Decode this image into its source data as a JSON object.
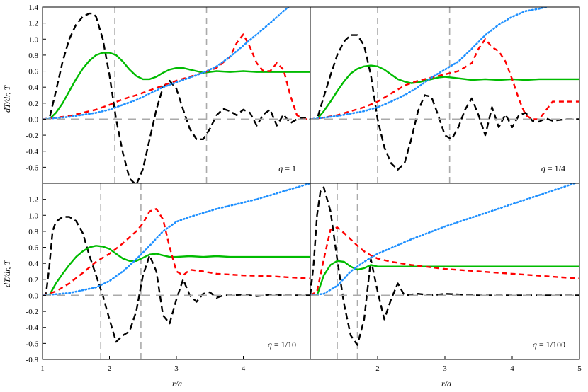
{
  "figure": {
    "ylabel": "dT/dr, T",
    "xlabel": "r/a",
    "colors": {
      "dT_dr": "#000000",
      "T": "#00bb00",
      "red": "#ff0000",
      "blue": "#1e90ff",
      "ref": "#aaaaaa"
    }
  },
  "chart_data": [
    {
      "type": "line",
      "panel": "top-left",
      "annotation": "q = 1",
      "q_value": "1",
      "xlim": [
        1,
        5
      ],
      "ylim": [
        -0.8,
        1.4
      ],
      "yticks": [
        "-0.6",
        "-0.4",
        "-0.2",
        "0.0",
        "0.2",
        "0.4",
        "0.6",
        "0.8",
        "1.0",
        "1.2",
        "1.4"
      ],
      "xticks": [],
      "vlines": [
        2.08,
        3.45
      ],
      "series": [
        {
          "key": "black",
          "style": "dashed",
          "x": [
            1.0,
            1.1,
            1.2,
            1.3,
            1.4,
            1.5,
            1.6,
            1.7,
            1.75,
            1.8,
            1.9,
            2.0,
            2.1,
            2.2,
            2.3,
            2.4,
            2.5,
            2.6,
            2.7,
            2.8,
            2.9,
            3.0,
            3.1,
            3.2,
            3.3,
            3.4,
            3.5,
            3.6,
            3.7,
            3.8,
            3.9,
            4.0,
            4.1,
            4.2,
            4.3,
            4.4,
            4.5,
            4.6,
            4.7,
            4.8,
            4.9,
            5.0
          ],
          "y": [
            0.0,
            0.0,
            0.35,
            0.72,
            1.0,
            1.18,
            1.28,
            1.32,
            1.32,
            1.28,
            1.0,
            0.55,
            0.0,
            -0.42,
            -0.74,
            -0.82,
            -0.62,
            -0.25,
            0.12,
            0.4,
            0.48,
            0.38,
            0.12,
            -0.12,
            -0.25,
            -0.25,
            -0.12,
            0.05,
            0.13,
            0.1,
            0.05,
            0.12,
            0.08,
            -0.08,
            0.06,
            0.12,
            -0.08,
            0.06,
            -0.05,
            0.0,
            0.02,
            0.0
          ]
        },
        {
          "key": "green",
          "style": "solid",
          "x": [
            1.0,
            1.1,
            1.2,
            1.3,
            1.4,
            1.5,
            1.6,
            1.7,
            1.8,
            1.9,
            2.0,
            2.1,
            2.2,
            2.3,
            2.4,
            2.5,
            2.6,
            2.7,
            2.8,
            2.9,
            3.0,
            3.1,
            3.2,
            3.3,
            3.4,
            3.5,
            3.6,
            3.8,
            4.0,
            4.2,
            4.4,
            4.6,
            4.8,
            5.0
          ],
          "y": [
            0.0,
            0.0,
            0.08,
            0.2,
            0.35,
            0.5,
            0.63,
            0.73,
            0.8,
            0.83,
            0.83,
            0.8,
            0.72,
            0.62,
            0.54,
            0.5,
            0.5,
            0.53,
            0.58,
            0.62,
            0.64,
            0.64,
            0.62,
            0.6,
            0.58,
            0.59,
            0.6,
            0.59,
            0.6,
            0.59,
            0.59,
            0.59,
            0.59,
            0.59
          ]
        },
        {
          "key": "red",
          "style": "dashed",
          "x": [
            1.0,
            1.2,
            1.4,
            1.6,
            1.8,
            2.0,
            2.2,
            2.4,
            2.6,
            2.8,
            3.0,
            3.2,
            3.4,
            3.6,
            3.8,
            3.9,
            4.0,
            4.1,
            4.2,
            4.3,
            4.4,
            4.5,
            4.6,
            4.7,
            4.8,
            4.9,
            5.0
          ],
          "y": [
            0.0,
            0.02,
            0.04,
            0.08,
            0.12,
            0.18,
            0.25,
            0.3,
            0.36,
            0.42,
            0.48,
            0.53,
            0.58,
            0.64,
            0.78,
            0.95,
            1.06,
            0.9,
            0.7,
            0.6,
            0.6,
            0.7,
            0.62,
            0.3,
            0.05,
            0.0,
            0.0
          ]
        },
        {
          "key": "blue",
          "style": "dotted",
          "x": [
            1.0,
            1.4,
            1.8,
            2.0,
            2.2,
            2.4,
            2.6,
            2.8,
            3.0,
            3.2,
            3.4,
            3.6,
            3.8,
            4.0,
            4.2,
            4.4,
            4.6,
            4.7,
            4.8,
            5.0
          ],
          "y": [
            0.0,
            0.03,
            0.08,
            0.12,
            0.18,
            0.24,
            0.32,
            0.4,
            0.46,
            0.52,
            0.58,
            0.66,
            0.78,
            0.92,
            1.06,
            1.2,
            1.35,
            1.42,
            1.5,
            1.6
          ]
        },
        {
          "key": "grey",
          "style": "dashed",
          "x": [
            1.0,
            5.0
          ],
          "y": [
            0.0,
            0.0
          ]
        }
      ]
    },
    {
      "type": "line",
      "panel": "top-right",
      "annotation": "q = 1/4",
      "q_value": "1/4",
      "xlim": [
        1,
        5
      ],
      "ylim": [
        -0.8,
        1.4
      ],
      "yticks": [],
      "xticks": [],
      "vlines": [
        2.0,
        3.07
      ],
      "series": [
        {
          "key": "black",
          "style": "dashed",
          "x": [
            1.0,
            1.1,
            1.2,
            1.3,
            1.4,
            1.5,
            1.6,
            1.7,
            1.8,
            1.9,
            2.0,
            2.1,
            2.2,
            2.3,
            2.4,
            2.5,
            2.6,
            2.7,
            2.8,
            2.9,
            3.0,
            3.1,
            3.2,
            3.3,
            3.4,
            3.5,
            3.6,
            3.7,
            3.8,
            3.9,
            4.0,
            4.1,
            4.2,
            4.3,
            4.4,
            4.5,
            4.6,
            4.8,
            5.0
          ],
          "y": [
            0.0,
            0.0,
            0.28,
            0.55,
            0.8,
            0.97,
            1.05,
            1.05,
            0.92,
            0.55,
            0.0,
            -0.35,
            -0.55,
            -0.63,
            -0.55,
            -0.25,
            0.1,
            0.3,
            0.28,
            0.05,
            -0.2,
            -0.25,
            -0.1,
            0.12,
            0.26,
            0.05,
            -0.2,
            0.15,
            -0.1,
            0.06,
            -0.1,
            0.05,
            0.08,
            -0.02,
            -0.03,
            0.01,
            -0.02,
            0.0,
            0.0
          ]
        },
        {
          "key": "green",
          "style": "solid",
          "x": [
            1.0,
            1.1,
            1.2,
            1.3,
            1.4,
            1.5,
            1.6,
            1.7,
            1.8,
            1.9,
            2.0,
            2.1,
            2.2,
            2.3,
            2.4,
            2.5,
            2.6,
            2.7,
            2.8,
            2.9,
            3.0,
            3.1,
            3.2,
            3.4,
            3.6,
            3.8,
            4.0,
            4.2,
            4.4,
            4.6,
            4.8,
            5.0
          ],
          "y": [
            0.0,
            0.0,
            0.1,
            0.22,
            0.35,
            0.47,
            0.57,
            0.63,
            0.66,
            0.67,
            0.66,
            0.62,
            0.56,
            0.5,
            0.47,
            0.45,
            0.46,
            0.48,
            0.5,
            0.52,
            0.53,
            0.52,
            0.51,
            0.49,
            0.5,
            0.49,
            0.5,
            0.49,
            0.5,
            0.5,
            0.5,
            0.5
          ]
        },
        {
          "key": "red",
          "style": "dashed",
          "x": [
            1.0,
            1.2,
            1.4,
            1.6,
            1.8,
            2.0,
            2.2,
            2.4,
            2.6,
            2.8,
            3.0,
            3.2,
            3.4,
            3.5,
            3.6,
            3.7,
            3.8,
            3.9,
            4.0,
            4.1,
            4.2,
            4.3,
            4.4,
            4.6,
            4.8,
            5.0
          ],
          "y": [
            0.0,
            0.02,
            0.05,
            0.1,
            0.15,
            0.22,
            0.32,
            0.42,
            0.48,
            0.52,
            0.56,
            0.6,
            0.7,
            0.88,
            1.0,
            0.9,
            0.85,
            0.72,
            0.5,
            0.25,
            0.05,
            0.0,
            0.0,
            0.22,
            0.22,
            0.22
          ]
        },
        {
          "key": "blue",
          "style": "dotted",
          "x": [
            1.0,
            1.4,
            1.8,
            2.0,
            2.2,
            2.4,
            2.6,
            2.8,
            3.0,
            3.2,
            3.4,
            3.6,
            3.8,
            4.0,
            4.2,
            4.4,
            4.6,
            4.8,
            5.0
          ],
          "y": [
            0.0,
            0.04,
            0.1,
            0.15,
            0.22,
            0.3,
            0.4,
            0.52,
            0.62,
            0.72,
            0.88,
            1.05,
            1.18,
            1.28,
            1.35,
            1.38,
            1.42,
            1.46,
            1.5
          ]
        },
        {
          "key": "grey",
          "style": "dashed",
          "x": [
            1.0,
            5.0
          ],
          "y": [
            0.0,
            0.0
          ]
        }
      ]
    },
    {
      "type": "line",
      "panel": "bottom-left",
      "annotation": "q = 1/10",
      "q_value": "1/10",
      "xlim": [
        1,
        5
      ],
      "ylim": [
        -0.8,
        1.4
      ],
      "yticks": [
        "-0.8",
        "-0.6",
        "-0.4",
        "-0.2",
        "0.0",
        "0.2",
        "0.4",
        "0.6",
        "0.8",
        "1.0",
        "1.2"
      ],
      "xticks": [
        "1",
        "2",
        "3",
        "4"
      ],
      "vlines": [
        1.87,
        2.47
      ],
      "series": [
        {
          "key": "black",
          "style": "dashed",
          "x": [
            1.0,
            1.05,
            1.1,
            1.15,
            1.2,
            1.3,
            1.4,
            1.5,
            1.6,
            1.7,
            1.8,
            1.9,
            2.0,
            2.1,
            2.2,
            2.3,
            2.4,
            2.5,
            2.6,
            2.7,
            2.8,
            2.9,
            3.0,
            3.1,
            3.2,
            3.3,
            3.4,
            3.5,
            3.6,
            3.7,
            3.8,
            4.0,
            4.2,
            4.4,
            4.6,
            4.8,
            5.0
          ],
          "y": [
            0.0,
            0.0,
            0.35,
            0.8,
            0.92,
            0.98,
            0.98,
            0.93,
            0.78,
            0.5,
            0.25,
            0.0,
            -0.3,
            -0.58,
            -0.5,
            -0.45,
            -0.2,
            0.25,
            0.5,
            0.3,
            -0.25,
            -0.35,
            -0.05,
            0.2,
            0.0,
            -0.08,
            0.02,
            0.04,
            -0.03,
            0.0,
            0.0,
            0.01,
            -0.01,
            0.01,
            0.0,
            0.0,
            0.0
          ]
        },
        {
          "key": "green",
          "style": "solid",
          "x": [
            1.0,
            1.1,
            1.2,
            1.3,
            1.4,
            1.5,
            1.6,
            1.7,
            1.8,
            1.9,
            2.0,
            2.1,
            2.2,
            2.3,
            2.4,
            2.5,
            2.6,
            2.7,
            2.8,
            2.9,
            3.0,
            3.2,
            3.4,
            3.6,
            3.8,
            4.0,
            4.4,
            4.8,
            5.0
          ],
          "y": [
            0.0,
            0.0,
            0.15,
            0.27,
            0.38,
            0.48,
            0.55,
            0.6,
            0.62,
            0.61,
            0.58,
            0.52,
            0.46,
            0.43,
            0.43,
            0.47,
            0.51,
            0.52,
            0.5,
            0.48,
            0.48,
            0.49,
            0.48,
            0.49,
            0.48,
            0.48,
            0.48,
            0.48,
            0.48
          ]
        },
        {
          "key": "red",
          "style": "dashed",
          "x": [
            1.0,
            1.2,
            1.4,
            1.6,
            1.8,
            2.0,
            2.2,
            2.4,
            2.5,
            2.6,
            2.7,
            2.8,
            2.9,
            3.0,
            3.1,
            3.2,
            3.4,
            3.6,
            3.8,
            4.0,
            4.4,
            4.8,
            5.0
          ],
          "y": [
            0.0,
            0.05,
            0.15,
            0.28,
            0.42,
            0.52,
            0.65,
            0.8,
            0.9,
            1.05,
            1.08,
            0.95,
            0.6,
            0.3,
            0.25,
            0.32,
            0.3,
            0.27,
            0.26,
            0.25,
            0.24,
            0.22,
            0.21
          ]
        },
        {
          "key": "blue",
          "style": "dotted",
          "x": [
            1.0,
            1.4,
            1.8,
            2.0,
            2.2,
            2.4,
            2.6,
            2.8,
            3.0,
            3.2,
            3.4,
            3.6,
            3.8,
            4.0,
            4.2,
            4.4,
            4.6,
            4.8,
            5.0
          ],
          "y": [
            0.0,
            0.03,
            0.1,
            0.18,
            0.3,
            0.45,
            0.62,
            0.8,
            0.92,
            0.98,
            1.03,
            1.08,
            1.12,
            1.16,
            1.2,
            1.25,
            1.3,
            1.35,
            1.4
          ]
        },
        {
          "key": "grey",
          "style": "dashed",
          "x": [
            1.0,
            5.0
          ],
          "y": [
            0.0,
            0.0
          ]
        }
      ]
    },
    {
      "type": "line",
      "panel": "bottom-right",
      "annotation": "q = 1/100",
      "q_value": "1/100",
      "xlim": [
        1,
        5
      ],
      "ylim": [
        -0.8,
        1.4
      ],
      "yticks": [],
      "xticks": [
        "2",
        "3",
        "4",
        "5"
      ],
      "vlines": [
        1.4,
        1.7
      ],
      "series": [
        {
          "key": "black",
          "style": "dashed",
          "x": [
            1.0,
            1.05,
            1.1,
            1.15,
            1.2,
            1.3,
            1.4,
            1.5,
            1.6,
            1.7,
            1.8,
            1.9,
            2.0,
            2.1,
            2.2,
            2.3,
            2.4,
            2.6,
            2.8,
            3.0,
            3.5,
            4.0,
            4.5,
            5.0
          ],
          "y": [
            0.0,
            0.4,
            1.0,
            1.3,
            1.35,
            1.05,
            0.45,
            -0.1,
            -0.5,
            -0.62,
            -0.3,
            0.45,
            0.05,
            -0.3,
            -0.05,
            0.15,
            0.0,
            0.02,
            0.0,
            0.02,
            0.0,
            0.0,
            0.0,
            0.0
          ]
        },
        {
          "key": "green",
          "style": "solid",
          "x": [
            1.0,
            1.1,
            1.2,
            1.3,
            1.4,
            1.5,
            1.6,
            1.7,
            1.8,
            1.9,
            2.0,
            2.2,
            2.4,
            2.6,
            3.0,
            3.5,
            4.0,
            4.5,
            5.0
          ],
          "y": [
            0.0,
            0.0,
            0.25,
            0.38,
            0.43,
            0.42,
            0.36,
            0.32,
            0.34,
            0.38,
            0.36,
            0.36,
            0.36,
            0.36,
            0.36,
            0.36,
            0.36,
            0.36,
            0.36
          ]
        },
        {
          "key": "red",
          "style": "dashed",
          "x": [
            1.0,
            1.1,
            1.2,
            1.3,
            1.4,
            1.5,
            1.6,
            1.7,
            1.8,
            1.9,
            2.0,
            2.2,
            2.5,
            3.0,
            3.5,
            4.0,
            4.5,
            5.0
          ],
          "y": [
            0.0,
            0.05,
            0.45,
            0.82,
            0.85,
            0.78,
            0.7,
            0.62,
            0.55,
            0.5,
            0.46,
            0.42,
            0.38,
            0.33,
            0.3,
            0.27,
            0.24,
            0.21
          ]
        },
        {
          "key": "blue",
          "style": "dotted",
          "x": [
            1.0,
            1.2,
            1.4,
            1.6,
            1.8,
            2.0,
            2.5,
            3.0,
            3.5,
            4.0,
            4.5,
            5.0
          ],
          "y": [
            0.0,
            0.02,
            0.12,
            0.3,
            0.42,
            0.52,
            0.7,
            0.86,
            1.0,
            1.14,
            1.28,
            1.42
          ]
        },
        {
          "key": "grey",
          "style": "dashed",
          "x": [
            1.0,
            5.0
          ],
          "y": [
            0.0,
            0.0
          ]
        }
      ]
    }
  ]
}
